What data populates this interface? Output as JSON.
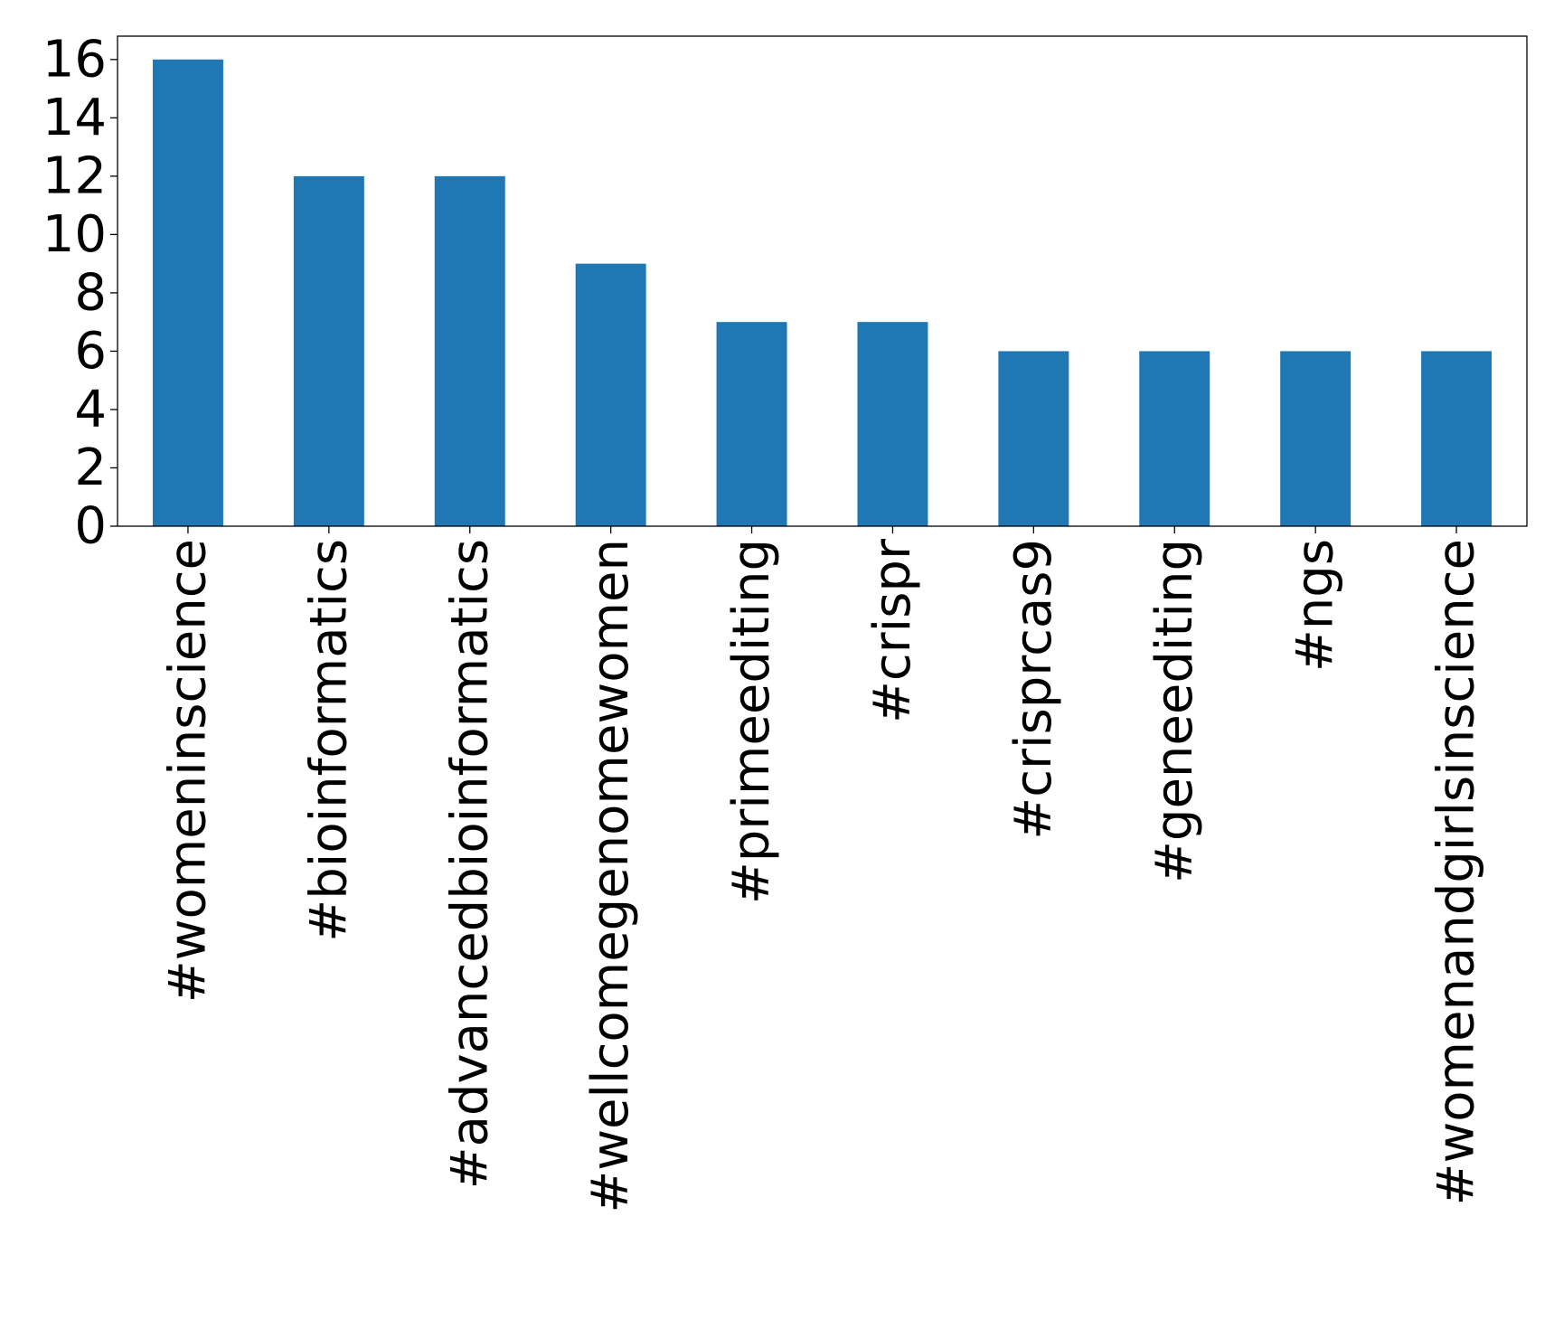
{
  "chart_data": {
    "type": "bar",
    "title": "",
    "xlabel": "",
    "ylabel": "",
    "categories": [
      "#womeninscience",
      "#bioinformatics",
      "#advancedbioinformatics",
      "#wellcomegenomewomen",
      "#primeediting",
      "#crispr",
      "#crisprcas9",
      "#geneediting",
      "#ngs",
      "#womenandgirlsinscience"
    ],
    "values": [
      16,
      12,
      12,
      9,
      7,
      7,
      6,
      6,
      6,
      6
    ],
    "ylim": [
      0,
      16.8
    ],
    "yticks": [
      0,
      2,
      4,
      6,
      8,
      10,
      12,
      14,
      16
    ],
    "grid": false,
    "legend": "none",
    "bar_color": "#1f77b4"
  }
}
